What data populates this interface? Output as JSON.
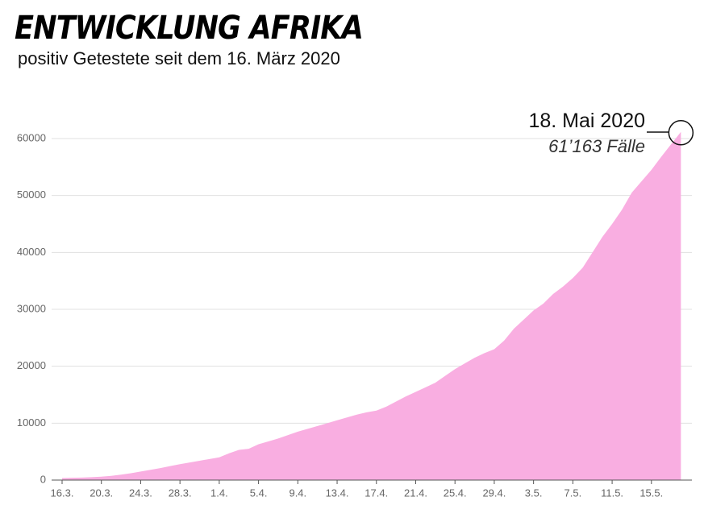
{
  "chart_data": {
    "type": "area",
    "title": "ENTWICKLUNG AFRIKA",
    "subtitle": "positiv Getestete seit dem 16. März 2020",
    "annotation": {
      "date": "18. Mai 2020",
      "label": "61’163 Fälle"
    },
    "color": "#f9aee1",
    "grid": true,
    "ylim": [
      0,
      65000
    ],
    "yticks": [
      0,
      10000,
      20000,
      30000,
      40000,
      50000,
      60000
    ],
    "categories": [
      "16.3.",
      null,
      null,
      null,
      "20.3.",
      null,
      null,
      null,
      "24.3.",
      null,
      null,
      null,
      "28.3.",
      null,
      null,
      null,
      "1.4.",
      null,
      null,
      null,
      "5.4.",
      null,
      null,
      null,
      "9.4.",
      null,
      null,
      null,
      "13.4.",
      null,
      null,
      null,
      "17.4.",
      null,
      null,
      null,
      "21.4.",
      null,
      null,
      null,
      "25.4.",
      null,
      null,
      null,
      "29.4.",
      null,
      null,
      null,
      "3.5.",
      null,
      null,
      null,
      "7.5.",
      null,
      null,
      null,
      "11.5.",
      null,
      null,
      null,
      "15.5.",
      null,
      null,
      null
    ],
    "values": [
      350,
      400,
      450,
      520,
      600,
      750,
      950,
      1200,
      1500,
      1800,
      2100,
      2450,
      2800,
      3100,
      3400,
      3700,
      4000,
      4700,
      5300,
      5500,
      6300,
      6800,
      7300,
      7900,
      8500,
      9000,
      9500,
      10000,
      10500,
      11000,
      11500,
      11900,
      12200,
      12900,
      13800,
      14700,
      15500,
      16300,
      17100,
      18300,
      19500,
      20500,
      21500,
      22300,
      23000,
      24500,
      26600,
      28200,
      29800,
      31000,
      32700,
      34000,
      35500,
      37300,
      40000,
      42700,
      45000,
      47500,
      50500,
      52500,
      54500,
      56800,
      59000,
      61163
    ]
  }
}
